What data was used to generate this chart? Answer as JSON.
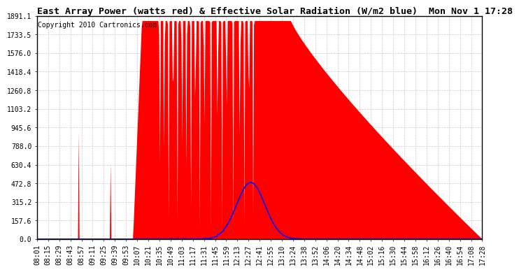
{
  "title": "East Array Power (watts red) & Effective Solar Radiation (W/m2 blue)  Mon Nov 1 17:28",
  "copyright": "Copyright 2010 Cartronics.com",
  "yticks": [
    0.0,
    157.6,
    315.2,
    472.8,
    630.4,
    788.0,
    945.6,
    1103.2,
    1260.8,
    1418.4,
    1576.0,
    1733.5,
    1891.1
  ],
  "ymax": 1891.1,
  "ymin": 0.0,
  "red_color": "#FF0000",
  "blue_color": "#0000FF",
  "bg_color": "#FFFFFF",
  "grid_color": "#CCCCCC",
  "title_fontsize": 9.5,
  "copyright_fontsize": 7,
  "tick_fontsize": 7,
  "time_labels": [
    "08:01",
    "08:15",
    "08:29",
    "08:43",
    "08:57",
    "09:11",
    "09:25",
    "09:39",
    "09:53",
    "10:07",
    "10:21",
    "10:35",
    "10:49",
    "11:03",
    "11:17",
    "11:31",
    "11:45",
    "11:59",
    "12:13",
    "12:27",
    "12:41",
    "12:55",
    "13:10",
    "13:24",
    "13:38",
    "13:52",
    "14:06",
    "14:20",
    "14:34",
    "14:48",
    "15:02",
    "15:16",
    "15:30",
    "15:44",
    "15:58",
    "16:12",
    "16:26",
    "16:40",
    "16:54",
    "17:08",
    "17:28"
  ],
  "n_points": 560
}
